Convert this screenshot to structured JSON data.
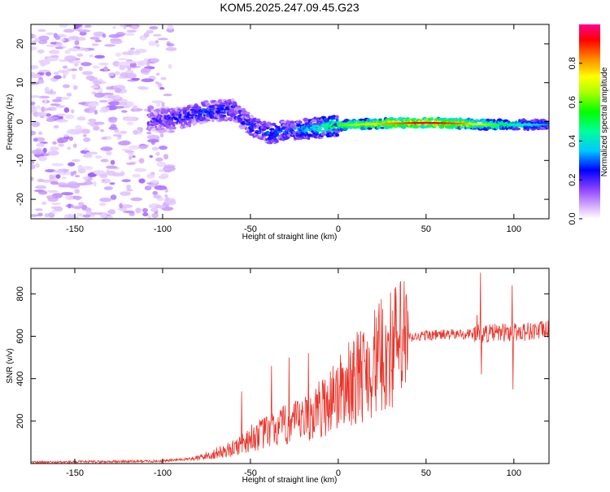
{
  "title": "KOM5.2025.247.09.45.G23",
  "chart_data": [
    {
      "type": "heatmap",
      "title": "KOM5.2025.247.09.45.G23",
      "xlabel": "Height of straight line (km)",
      "ylabel": "Frequency (Hz)",
      "xlim": [
        -175,
        120
      ],
      "ylim": [
        -25,
        25
      ],
      "xticks": [
        -150,
        -100,
        -50,
        0,
        50,
        100
      ],
      "yticks": [
        -20,
        -10,
        0,
        10,
        20
      ],
      "colorbar": {
        "label": "Normalized spectral amplitude",
        "range": [
          0,
          1
        ],
        "ticks": [
          0.0,
          0.2,
          0.4,
          0.6,
          0.8
        ],
        "tick_labels": [
          "0.0",
          "0.2",
          "0.4",
          "0.6",
          "0.8"
        ],
        "colormap": "rainbow"
      },
      "ridge": {
        "description_points": [
          {
            "x": -105,
            "freq": 0.5,
            "amp": 0.22
          },
          {
            "x": -90,
            "freq": 1.0,
            "amp": 0.25
          },
          {
            "x": -75,
            "freq": 2.5,
            "amp": 0.3
          },
          {
            "x": -60,
            "freq": 3.0,
            "amp": 0.28
          },
          {
            "x": -50,
            "freq": -1.0,
            "amp": 0.28
          },
          {
            "x": -40,
            "freq": -3.0,
            "amp": 0.3
          },
          {
            "x": -20,
            "freq": -2.0,
            "amp": 0.35
          },
          {
            "x": 0,
            "freq": -1.0,
            "amp": 0.55
          },
          {
            "x": 25,
            "freq": -0.5,
            "amp": 0.75
          },
          {
            "x": 50,
            "freq": -0.3,
            "amp": 0.92
          },
          {
            "x": 70,
            "freq": -0.5,
            "amp": 0.8
          },
          {
            "x": 85,
            "freq": -0.8,
            "amp": 0.6
          },
          {
            "x": 100,
            "freq": -0.8,
            "amp": 0.45
          },
          {
            "x": 120,
            "freq": -0.8,
            "amp": 0.3
          }
        ],
        "noise_region_x": [
          -175,
          -105
        ]
      }
    },
    {
      "type": "line",
      "xlabel": "Height of straight line (km)",
      "ylabel": "SNR (v/v)",
      "xlim": [
        -175,
        120
      ],
      "ylim": [
        0,
        920
      ],
      "xticks": [
        -150,
        -100,
        -50,
        0,
        50,
        100
      ],
      "yticks": [
        200,
        400,
        600,
        800
      ],
      "color": "#e8342a",
      "series": [
        {
          "name": "SNR",
          "trend": [
            {
              "x": -175,
              "y": 5
            },
            {
              "x": -100,
              "y": 12
            },
            {
              "x": -80,
              "y": 25
            },
            {
              "x": -60,
              "y": 70
            },
            {
              "x": -50,
              "y": 120
            },
            {
              "x": -40,
              "y": 150
            },
            {
              "x": -30,
              "y": 180
            },
            {
              "x": -20,
              "y": 200
            },
            {
              "x": -10,
              "y": 260
            },
            {
              "x": 0,
              "y": 330
            },
            {
              "x": 10,
              "y": 400
            },
            {
              "x": 20,
              "y": 470
            },
            {
              "x": 30,
              "y": 540
            },
            {
              "x": 40,
              "y": 590
            },
            {
              "x": 50,
              "y": 605
            },
            {
              "x": 70,
              "y": 610
            },
            {
              "x": 90,
              "y": 615
            },
            {
              "x": 120,
              "y": 630
            }
          ],
          "peaks": [
            {
              "x": -55,
              "y": 340
            },
            {
              "x": -38,
              "y": 460
            },
            {
              "x": -28,
              "y": 500
            },
            {
              "x": -17,
              "y": 520
            },
            {
              "x": -3,
              "y": 460
            },
            {
              "x": 9,
              "y": 570
            },
            {
              "x": 79,
              "y": 700
            },
            {
              "x": 81,
              "y": 900
            },
            {
              "x": 81.5,
              "y": 420
            },
            {
              "x": 99,
              "y": 840
            },
            {
              "x": 99.5,
              "y": 350
            }
          ]
        }
      ]
    }
  ]
}
